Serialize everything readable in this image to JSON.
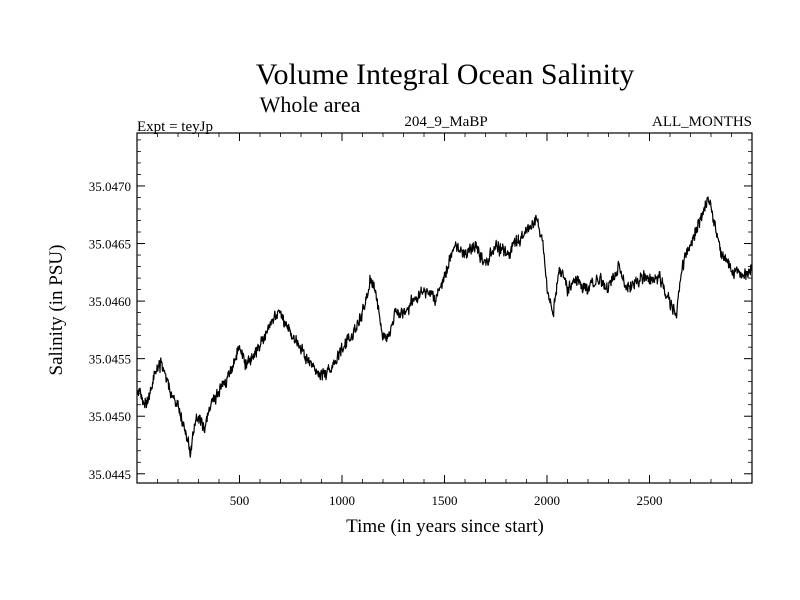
{
  "chart_data": {
    "type": "line",
    "title": "Volume Integral Ocean Salinity",
    "subtitle": "Whole area",
    "header_left": "Expt = teyJp",
    "header_center": "204_9_MaBP",
    "header_right": "ALL_MONTHS",
    "xlabel": "Time (in years since start)",
    "ylabel": "Salinity (in PSU)",
    "xlim": [
      0,
      3000
    ],
    "ylim": [
      35.04442,
      35.04746
    ],
    "xticks": [
      500,
      1000,
      1500,
      2000,
      2500
    ],
    "yticks": [
      35.0445,
      35.045,
      35.0455,
      35.046,
      35.0465,
      35.047
    ],
    "ytick_labels": [
      "35.0445",
      "35.0450",
      "35.0455",
      "35.0460",
      "35.0465",
      "35.0470"
    ],
    "grid": false,
    "noise_amplitude": 7e-05,
    "series": [
      {
        "name": "salinity",
        "x": [
          0,
          30,
          60,
          90,
          120,
          150,
          170,
          200,
          230,
          260,
          280,
          300,
          330,
          360,
          400,
          450,
          500,
          530,
          560,
          600,
          650,
          700,
          750,
          800,
          850,
          900,
          950,
          1000,
          1050,
          1100,
          1140,
          1160,
          1200,
          1230,
          1260,
          1300,
          1350,
          1400,
          1450,
          1500,
          1550,
          1600,
          1650,
          1700,
          1750,
          1800,
          1850,
          1900,
          1950,
          1980,
          2000,
          2030,
          2060,
          2100,
          2150,
          2200,
          2250,
          2300,
          2350,
          2400,
          2450,
          2500,
          2550,
          2600,
          2630,
          2660,
          2700,
          2750,
          2780,
          2800,
          2850,
          2900,
          2950,
          3000
        ],
        "values": [
          35.04525,
          35.0451,
          35.04515,
          35.0454,
          35.04545,
          35.0453,
          35.04515,
          35.0451,
          35.0449,
          35.0447,
          35.0449,
          35.045,
          35.0449,
          35.0451,
          35.0452,
          35.04535,
          35.0456,
          35.04545,
          35.0455,
          35.04565,
          35.0458,
          35.0459,
          35.0457,
          35.0456,
          35.04545,
          35.04535,
          35.0454,
          35.0456,
          35.0457,
          35.0459,
          35.0462,
          35.0461,
          35.0457,
          35.0457,
          35.0459,
          35.0459,
          35.046,
          35.0461,
          35.046,
          35.0462,
          35.0465,
          35.0464,
          35.0465,
          35.0463,
          35.0465,
          35.0464,
          35.0465,
          35.0466,
          35.0467,
          35.0465,
          35.0461,
          35.0459,
          35.0463,
          35.0461,
          35.0462,
          35.0461,
          35.0462,
          35.0461,
          35.0463,
          35.0461,
          35.0462,
          35.0462,
          35.0462,
          35.046,
          35.0459,
          35.0463,
          35.0465,
          35.0467,
          35.0469,
          35.0468,
          35.0464,
          35.0463,
          35.0462,
          35.0463
        ]
      }
    ]
  }
}
